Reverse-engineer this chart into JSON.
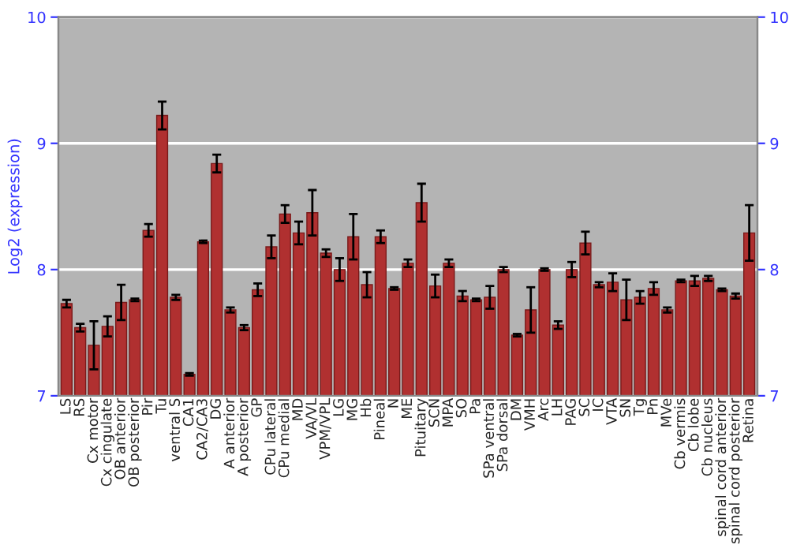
{
  "chart_data": {
    "type": "bar",
    "ylabel": "Log2 (expression)",
    "categories": [
      "LS",
      "RS",
      "Cx motor",
      "Cx cingulate",
      "OB anterior",
      "OB posterior",
      "Pir",
      "Tu",
      "ventral S",
      "CA1",
      "CA2/CA3",
      "DG",
      "A anterior",
      "A posterior",
      "GP",
      "CPu lateral",
      "CPu medial",
      "MD",
      "VA/VL",
      "VPM/VPL",
      "LG",
      "MG",
      "Hb",
      "Pineal",
      "N",
      "ME",
      "Pituitary",
      "SCN",
      "MPA",
      "SO",
      "Pa",
      "SPa ventral",
      "SPa dorsal",
      "DM",
      "VMH",
      "Arc",
      "LH",
      "PAG",
      "SC",
      "IC",
      "VTA",
      "SN",
      "Tg",
      "Pn",
      "MVe",
      "Cb vermis",
      "Cb lobe",
      "Cb nucleus",
      "spinal cord anterior",
      "spinal cord posterior",
      "Retina"
    ],
    "series": [
      {
        "color": "#b03030",
        "values": [
          7.73,
          7.54,
          7.4,
          7.55,
          7.74,
          7.76,
          8.31,
          9.22,
          7.78,
          7.17,
          8.22,
          8.84,
          7.68,
          7.54,
          7.84,
          8.18,
          8.44,
          8.29,
          8.45,
          8.13,
          8.0,
          8.26,
          7.88,
          8.26,
          7.85,
          8.05,
          8.53,
          7.87,
          8.05,
          7.79,
          7.76,
          7.78,
          8.0,
          7.48,
          7.68,
          8.0,
          7.56,
          8.0,
          8.21,
          7.88,
          7.9,
          7.76,
          7.78,
          7.85,
          7.68,
          7.91,
          7.91,
          7.93,
          7.84,
          7.79,
          8.29
        ],
        "errors": [
          0.03,
          0.03,
          0.19,
          0.08,
          0.14,
          0.01,
          0.05,
          0.11,
          0.02,
          0.01,
          0.01,
          0.07,
          0.02,
          0.02,
          0.05,
          0.09,
          0.07,
          0.09,
          0.18,
          0.03,
          0.09,
          0.18,
          0.1,
          0.05,
          0.01,
          0.03,
          0.15,
          0.09,
          0.03,
          0.04,
          0.01,
          0.09,
          0.02,
          0.01,
          0.18,
          0.01,
          0.03,
          0.06,
          0.09,
          0.02,
          0.07,
          0.16,
          0.05,
          0.05,
          0.02,
          0.01,
          0.04,
          0.02,
          0.01,
          0.02,
          0.22
        ]
      }
    ],
    "ylim": [
      7,
      10
    ],
    "yticks": [
      7,
      8,
      9,
      10
    ],
    "y2lim": [
      7,
      10
    ],
    "y2ticks": [
      7,
      8,
      9,
      10
    ],
    "grid": "y",
    "legend": false
  }
}
